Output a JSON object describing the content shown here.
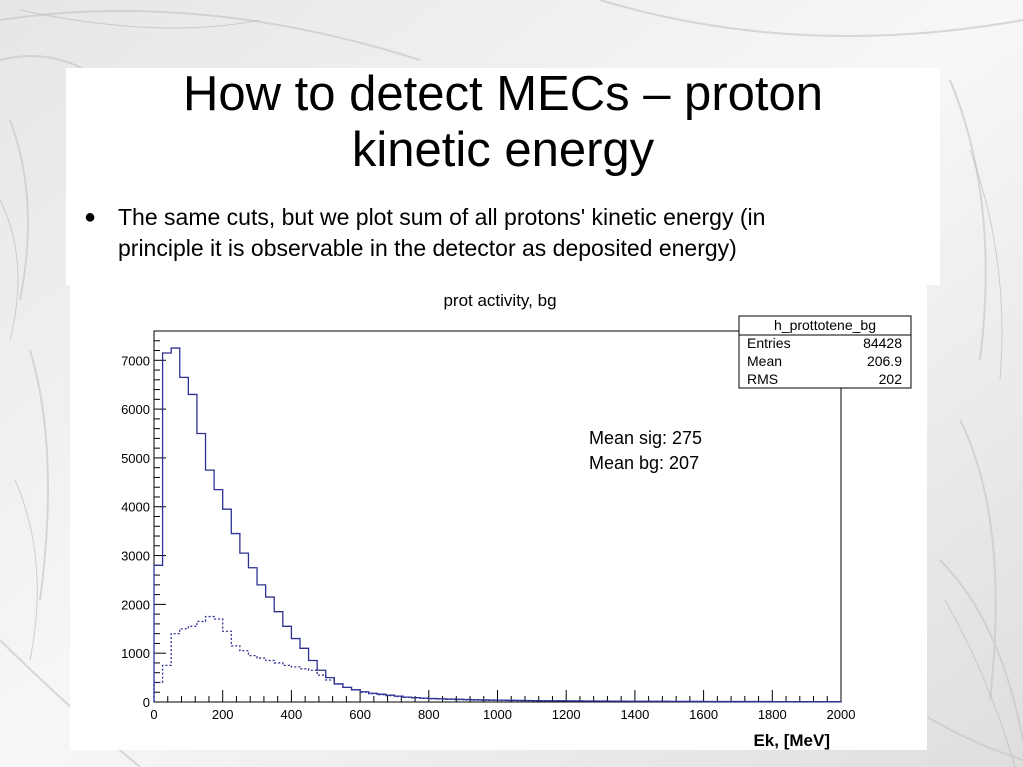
{
  "slide": {
    "title_lines": [
      "How to detect MECs – proton",
      "kinetic energy"
    ],
    "bullet": {
      "icon": "bullet-dot-icon",
      "lines": [
        "The same cuts, but we plot sum of all protons' kinetic energy (in",
        "principle it is observable in the detector as deposited energy)"
      ]
    }
  },
  "stats_box": {
    "title": "h_prottotene_bg",
    "rows": [
      {
        "label": "Entries",
        "value": "84428"
      },
      {
        "label": "Mean",
        "value": "206.9"
      },
      {
        "label": "RMS",
        "value": "202"
      }
    ]
  },
  "annotations": [
    "Mean sig: 275",
    "Mean bg: 207"
  ],
  "chart_data": {
    "type": "line",
    "title": "prot activity, bg",
    "xlabel": "Ek, [MeV]",
    "ylabel": "",
    "xlim": [
      0,
      2000
    ],
    "ylim": [
      0,
      7600
    ],
    "xticks": [
      0,
      200,
      400,
      600,
      800,
      1000,
      1200,
      1400,
      1600,
      1800,
      2000
    ],
    "yticks": [
      0,
      1000,
      2000,
      3000,
      4000,
      5000,
      6000,
      7000
    ],
    "bin_width": 25,
    "grid": false,
    "series": [
      {
        "style": "solid",
        "color": "#2e3192",
        "values": [
          2800,
          7150,
          7250,
          6650,
          6300,
          5500,
          4750,
          4350,
          3950,
          3450,
          3050,
          2750,
          2400,
          2150,
          1850,
          1550,
          1300,
          1100,
          850,
          650,
          500,
          370,
          300,
          250,
          210,
          180,
          160,
          140,
          120,
          100,
          90,
          80,
          70,
          65,
          60,
          55,
          50,
          45,
          42,
          40,
          38,
          35,
          33,
          30,
          28,
          26,
          25,
          24,
          23,
          22,
          21,
          20,
          19,
          18,
          17,
          16,
          15,
          15,
          14,
          14,
          13,
          13,
          12,
          12,
          11,
          11,
          10,
          10,
          10,
          9,
          9,
          9,
          8,
          8,
          8,
          7,
          7,
          7,
          6,
          6
        ]
      },
      {
        "style": "dashed",
        "color": "#2e3192",
        "values": [
          400,
          750,
          1400,
          1500,
          1550,
          1650,
          1750,
          1700,
          1450,
          1150,
          1050,
          950,
          900,
          850,
          800,
          750,
          720,
          680,
          650,
          550,
          450,
          370,
          300,
          250,
          200,
          170,
          150,
          130,
          110,
          95,
          85,
          75,
          68,
          62,
          56,
          50,
          45,
          40,
          37,
          34,
          31,
          29,
          27,
          25,
          23,
          22,
          21,
          20,
          19,
          18,
          17,
          16,
          15,
          14,
          13,
          13,
          12,
          12,
          11,
          11,
          10,
          10,
          9,
          9,
          9,
          8,
          8,
          8,
          7,
          7,
          7,
          6,
          6,
          6,
          5,
          5,
          5,
          5,
          4,
          4
        ]
      }
    ]
  }
}
